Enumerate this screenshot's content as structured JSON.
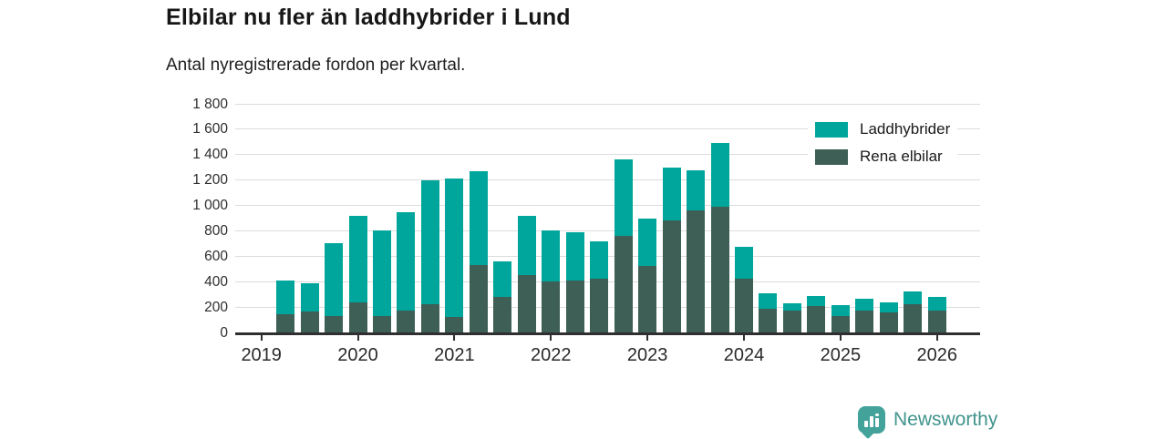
{
  "header": {
    "title": "Elbilar nu fler än laddhybrider i Lund",
    "subtitle": "Antal nyregistrerade fordon per kvartal."
  },
  "chart_data": {
    "type": "bar",
    "stacked": true,
    "title": "Elbilar nu fler än laddhybrider i Lund",
    "subtitle": "Antal nyregistrerade fordon per kvartal.",
    "x": [
      "2019 Q2",
      "2019 Q3",
      "2019 Q4",
      "2020 Q1",
      "2020 Q2",
      "2020 Q3",
      "2020 Q4",
      "2021 Q1",
      "2021 Q2",
      "2021 Q3",
      "2021 Q4",
      "2022 Q1",
      "2022 Q2",
      "2022 Q3",
      "2022 Q4",
      "2023 Q1",
      "2023 Q2",
      "2023 Q3",
      "2023 Q4",
      "2024 Q1",
      "2024 Q2",
      "2024 Q3",
      "2024 Q4",
      "2025 Q1",
      "2025 Q2",
      "2025 Q3",
      "2025 Q4",
      "2026 Q1"
    ],
    "series": [
      {
        "name": "Laddhybrider",
        "color": "#00a69c",
        "values": [
          265,
          225,
          570,
          680,
          670,
          775,
          975,
          1085,
          740,
          280,
          460,
          400,
          380,
          300,
          600,
          375,
          420,
          315,
          500,
          255,
          125,
          60,
          85,
          85,
          95,
          85,
          105,
          105
        ]
      },
      {
        "name": "Rena elbilar",
        "color": "#3d5f56",
        "values": [
          145,
          165,
          130,
          240,
          130,
          170,
          220,
          125,
          530,
          280,
          455,
          400,
          410,
          420,
          760,
          525,
          880,
          960,
          990,
          420,
          185,
          170,
          205,
          130,
          170,
          155,
          220,
          175
        ]
      }
    ],
    "ylim": [
      0,
      1800
    ],
    "ytick_values": [
      0,
      200,
      400,
      600,
      800,
      1000,
      1200,
      1400,
      1600,
      1800
    ],
    "ytick_labels": [
      "0",
      "200",
      "400",
      "600",
      "800",
      "1 000",
      "1 200",
      "1 400",
      "1 600",
      "1 800"
    ],
    "xtick_labels": [
      "2019",
      "2020",
      "2021",
      "2022",
      "2023",
      "2024",
      "2025",
      "2026"
    ],
    "grid": true,
    "legend_position": "top-right"
  },
  "footer": {
    "brand": "Newsworthy"
  },
  "colors": {
    "laddhybrider": "#00a69c",
    "rena_elbilar": "#3d5f56",
    "gridline": "#dcdcdc",
    "axis": "#2f2f2f",
    "brand_teal": "#43a39b"
  }
}
